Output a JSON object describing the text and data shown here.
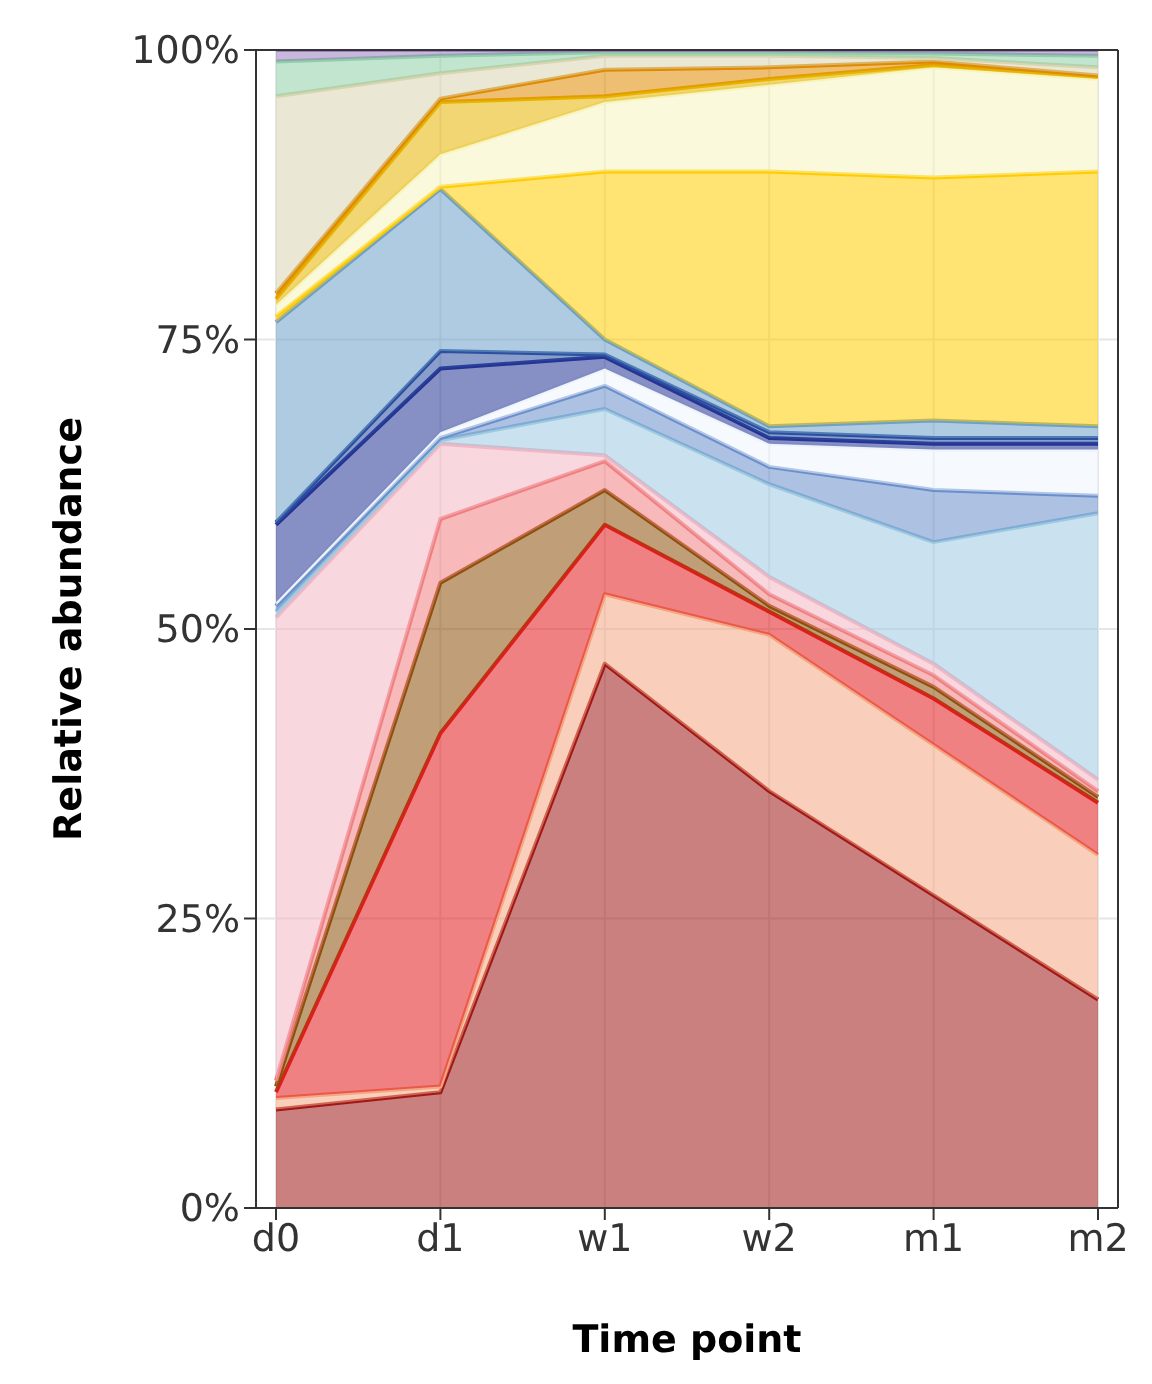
{
  "chart_data": {
    "type": "area",
    "stacked": true,
    "xlabel": "Time point",
    "ylabel": "Relative abundance",
    "categories": [
      "d0",
      "d1",
      "w1",
      "w2",
      "m1",
      "m2"
    ],
    "ylim": [
      0,
      100
    ],
    "yticks": [
      {
        "value": 0,
        "label": "0%"
      },
      {
        "value": 25,
        "label": "25%"
      },
      {
        "value": 50,
        "label": "50%"
      },
      {
        "value": 75,
        "label": "75%"
      },
      {
        "value": 100,
        "label": "100%"
      }
    ],
    "grid": true,
    "legend": false,
    "series": [
      {
        "color": "#a01818",
        "values": [
          8.5,
          10,
          47,
          36,
          27,
          18
        ]
      },
      {
        "color": "#f4a582",
        "values": [
          1,
          0.5,
          6,
          13.5,
          13,
          12.5
        ]
      },
      {
        "color": "#e41a1c",
        "values": [
          0.5,
          30.5,
          6,
          2,
          4,
          4.5
        ]
      },
      {
        "color": "#8c510a",
        "values": [
          0.5,
          13,
          3,
          0.5,
          1,
          0.5
        ]
      },
      {
        "color": "#f08080",
        "values": [
          0.5,
          5.5,
          2.5,
          1,
          1,
          0.5
        ]
      },
      {
        "color": "#f4b6c2",
        "values": [
          40,
          6.5,
          0.5,
          1.5,
          1,
          1
        ]
      },
      {
        "color": "#9ecae1",
        "values": [
          0.5,
          0.3,
          4,
          8,
          10.5,
          23
        ]
      },
      {
        "color": "#6a8fcb",
        "values": [
          0.5,
          0.2,
          2,
          1.5,
          4.5,
          1.5
        ]
      },
      {
        "color": "#eef4fb",
        "values": [
          0.3,
          0.5,
          1.5,
          2,
          3.5,
          4
        ]
      },
      {
        "color": "#253494",
        "values": [
          6.7,
          5.5,
          1,
          0.5,
          0.5,
          0.5
        ]
      },
      {
        "color": "#2c4fa0",
        "values": [
          0.2,
          1.5,
          0.2,
          0.5,
          0.5,
          0.5
        ]
      },
      {
        "color": "#6ea0c8",
        "values": [
          17.3,
          14,
          1.3,
          0.5,
          1.5,
          1
        ]
      },
      {
        "color": "#ffcc00",
        "values": [
          0.5,
          0.2,
          14.5,
          22,
          21,
          22
        ]
      },
      {
        "color": "#f7f4c0",
        "values": [
          1,
          2.8,
          6,
          7.5,
          9.5,
          8
        ]
      },
      {
        "color": "#e6b400",
        "values": [
          0.5,
          4.5,
          0.5,
          0.5,
          0.2,
          0.2
        ]
      },
      {
        "color": "#e08a00",
        "values": [
          0.5,
          0.3,
          2.3,
          1,
          0.3,
          0.1
        ]
      },
      {
        "color": "#d9d5b0",
        "values": [
          17,
          2.2,
          1.2,
          1,
          0.3,
          0.7
        ]
      },
      {
        "color": "#8fd0a8",
        "values": [
          3,
          1.5,
          0.3,
          0.3,
          0.4,
          1
        ]
      },
      {
        "color": "#9a80c0",
        "values": [
          1,
          0.5,
          0.2,
          0.2,
          0.3,
          0.5
        ]
      }
    ]
  }
}
